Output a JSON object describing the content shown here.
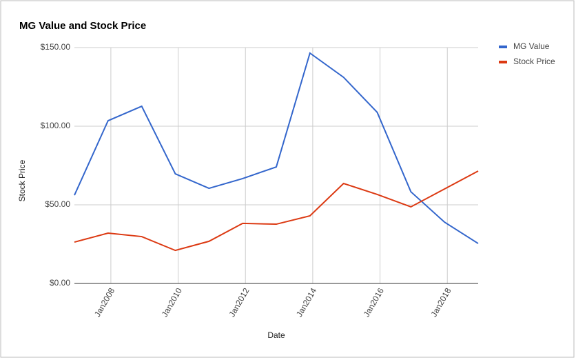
{
  "chart_data": {
    "type": "line",
    "title": "MG Value and Stock Price",
    "x_label": "Date",
    "y_label": "Stock Price",
    "x": [
      "2006-12",
      "2007-12",
      "2008-12",
      "2009-12",
      "2010-12",
      "2011-12",
      "2012-12",
      "2013-12",
      "2014-12",
      "2015-12",
      "2016-12",
      "2017-12",
      "2018-12"
    ],
    "series": [
      {
        "name": "MG Value",
        "color": "#3366cc",
        "values": [
          56.1,
          103.5,
          112.7,
          69.7,
          60.5,
          66.7,
          74.1,
          146.5,
          131.1,
          108.8,
          58.3,
          39,
          25.4
        ]
      },
      {
        "name": "Stock Price",
        "color": "#dc3912",
        "values": [
          26.3,
          32,
          29.8,
          21,
          26.8,
          38.2,
          37.7,
          43,
          63.6,
          56.6,
          48.7,
          60.1,
          71.5
        ]
      }
    ],
    "xlim": [
      "2006-12",
      "2018-12"
    ],
    "xticks": [
      {
        "value": "2008-01",
        "label": "Jan2008"
      },
      {
        "value": "2010-01",
        "label": "Jan2010"
      },
      {
        "value": "2012-01",
        "label": "Jan2012"
      },
      {
        "value": "2014-01",
        "label": "Jan2014"
      },
      {
        "value": "2016-01",
        "label": "Jan2016"
      },
      {
        "value": "2018-01",
        "label": "Jan2018"
      }
    ],
    "ylim": [
      0,
      150
    ],
    "yticks": [
      {
        "value": 0,
        "label": "$0.00"
      },
      {
        "value": 50,
        "label": "$50.00"
      },
      {
        "value": 100,
        "label": "$100.00"
      },
      {
        "value": 150,
        "label": "$150.00"
      }
    ],
    "grid": true,
    "legend": "right"
  }
}
